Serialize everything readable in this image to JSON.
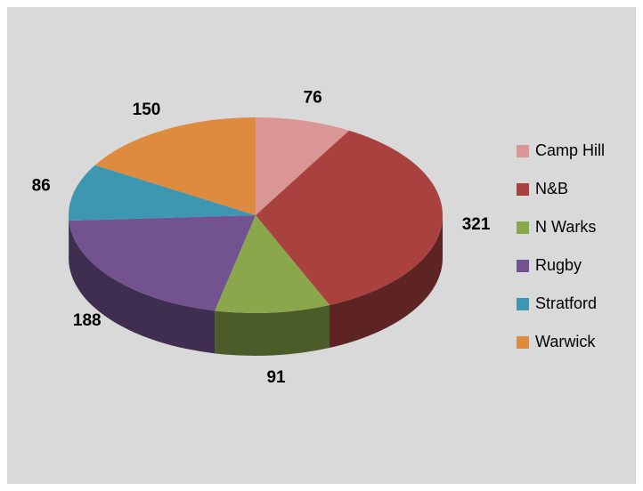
{
  "chart_data": {
    "type": "pie3d",
    "categories": [
      "Camp Hill",
      "N&B",
      "N Warks",
      "Rugby",
      "Stratford",
      "Warwick"
    ],
    "values": [
      76,
      321,
      91,
      188,
      86,
      150
    ],
    "colors": [
      "#d99694",
      "#a9423f",
      "#8aa84b",
      "#72538f",
      "#3e97b0",
      "#de8a3f"
    ],
    "legend": "right"
  }
}
